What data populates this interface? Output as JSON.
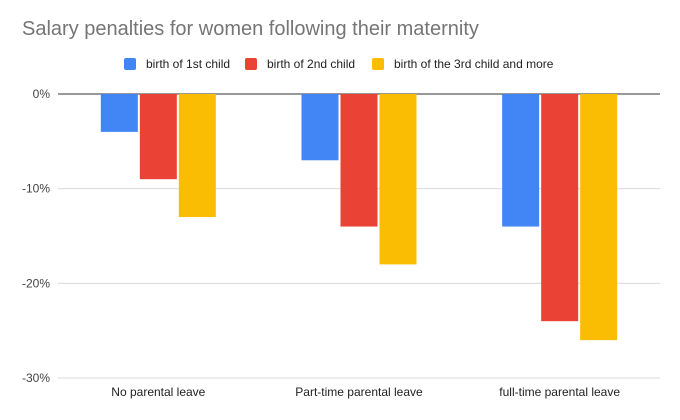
{
  "chart_data": {
    "type": "bar",
    "title": "Salary penalties for women following their maternity",
    "xlabel": "",
    "ylabel": "",
    "categories": [
      "No parental leave",
      "Part-time parental leave",
      "full-time parental leave"
    ],
    "series": [
      {
        "name": "birth of 1st child",
        "color": "#4285F4",
        "values": [
          -4,
          -7,
          -14
        ]
      },
      {
        "name": "birth of 2nd child",
        "color": "#EA4335",
        "values": [
          -9,
          -14,
          -24
        ]
      },
      {
        "name": "birth of the 3rd child and more",
        "color": "#FBBC04",
        "values": [
          -13,
          -18,
          -26
        ]
      }
    ],
    "ylim": [
      -30,
      0
    ],
    "yticks": [
      0,
      -10,
      -20,
      -30
    ],
    "ytick_labels": [
      "0%",
      "-10%",
      "-20%",
      "-30%"
    ],
    "grid": true,
    "legend_position": "top"
  }
}
